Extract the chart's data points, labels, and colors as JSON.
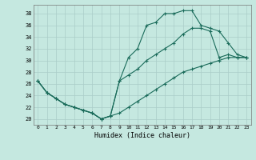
{
  "xlabel": "Humidex (Indice chaleur)",
  "xlim": [
    -0.5,
    23.5
  ],
  "ylim": [
    19.0,
    39.5
  ],
  "yticks": [
    20,
    22,
    24,
    26,
    28,
    30,
    32,
    34,
    36,
    38
  ],
  "xticks": [
    0,
    1,
    2,
    3,
    4,
    5,
    6,
    7,
    8,
    9,
    10,
    11,
    12,
    13,
    14,
    15,
    16,
    17,
    18,
    19,
    20,
    21,
    22,
    23
  ],
  "background_color": "#c5e8e0",
  "grid_color": "#b0d8d0",
  "line_color": "#1a6b5a",
  "curve1_x": [
    0,
    1,
    2,
    3,
    4,
    5,
    6,
    7,
    8,
    9,
    10,
    11,
    12,
    13,
    14,
    15,
    16,
    17,
    18,
    19,
    20,
    21,
    22,
    23
  ],
  "curve1_y": [
    26.5,
    24.5,
    23.5,
    22.5,
    22.0,
    21.5,
    21.0,
    20.0,
    20.5,
    26.5,
    30.5,
    32.0,
    36.0,
    36.5,
    38.0,
    38.0,
    38.5,
    38.5,
    36.0,
    35.5,
    35.0,
    33.0,
    31.0,
    30.5
  ],
  "curve2_x": [
    0,
    1,
    2,
    3,
    4,
    5,
    6,
    7,
    8,
    9,
    10,
    11,
    12,
    13,
    14,
    15,
    16,
    17,
    18,
    19,
    20,
    21,
    22,
    23
  ],
  "curve2_y": [
    26.5,
    24.5,
    23.5,
    22.5,
    22.0,
    21.5,
    21.0,
    20.0,
    20.5,
    26.5,
    27.5,
    28.5,
    30.0,
    31.0,
    32.0,
    33.0,
    34.5,
    35.5,
    35.5,
    35.0,
    30.5,
    31.0,
    30.5,
    30.5
  ],
  "curve3_x": [
    0,
    1,
    2,
    3,
    4,
    5,
    6,
    7,
    8,
    9,
    10,
    11,
    12,
    13,
    14,
    15,
    16,
    17,
    18,
    19,
    20,
    21,
    22,
    23
  ],
  "curve3_y": [
    26.5,
    24.5,
    23.5,
    22.5,
    22.0,
    21.5,
    21.0,
    20.0,
    20.5,
    21.0,
    22.0,
    23.0,
    24.0,
    25.0,
    26.0,
    27.0,
    28.0,
    28.5,
    29.0,
    29.5,
    30.0,
    30.5,
    30.5,
    30.5
  ]
}
